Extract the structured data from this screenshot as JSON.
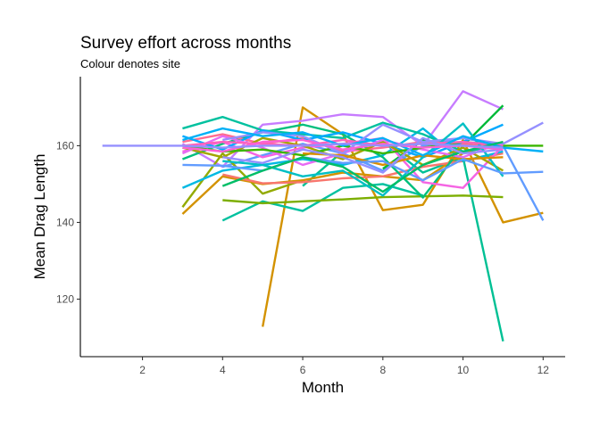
{
  "chart_data": {
    "type": "line",
    "title": "Survey effort across months",
    "subtitle": "Colour denotes site",
    "xlabel": "Month",
    "ylabel": "Mean Drag Length",
    "xlim": [
      0.45,
      12.55
    ],
    "ylim": [
      105,
      178
    ],
    "x_ticks": [
      2,
      4,
      6,
      8,
      10,
      12
    ],
    "y_ticks": [
      120,
      140,
      160
    ],
    "grid": false,
    "legend": "none",
    "series": [
      {
        "color": "#D39200",
        "x": [
          5,
          6,
          7,
          8,
          9,
          10,
          11,
          12
        ],
        "y": [
          112.8,
          170.0,
          163.0,
          143.2,
          144.6,
          161.5,
          140.0,
          142.5
        ]
      },
      {
        "color": "#00C094",
        "x": [
          6,
          7,
          8,
          9,
          10,
          11
        ],
        "y": [
          149.5,
          158.5,
          161.0,
          153.0,
          157.0,
          109.0
        ]
      },
      {
        "color": "#C77CFF",
        "x": [
          3,
          4,
          5,
          6,
          7,
          8,
          9,
          10,
          11
        ],
        "y": [
          160.5,
          154.5,
          165.5,
          166.5,
          168.2,
          167.5,
          160.0,
          174.2,
          169.5
        ]
      },
      {
        "color": "#619CFF",
        "x": [
          4,
          5,
          6,
          7,
          8,
          9,
          10,
          11,
          12
        ],
        "y": [
          154.5,
          157.5,
          160.5,
          158.0,
          153.5,
          160.0,
          162.0,
          160.0,
          140.5
        ]
      },
      {
        "color": "#00BA38",
        "x": [
          8,
          9,
          10,
          11
        ],
        "y": [
          154.0,
          161.5,
          160.0,
          170.5
        ]
      },
      {
        "color": "#93AA00",
        "x": [
          3,
          4,
          5,
          6
        ],
        "y": [
          144.0,
          158.0,
          147.5,
          151.0
        ]
      },
      {
        "color": "#D39200",
        "x": [
          3,
          4,
          5,
          6,
          7,
          8,
          9,
          10,
          11
        ],
        "y": [
          142.2,
          152.0,
          150.0,
          151.0,
          153.0,
          152.0,
          151.0,
          158.0,
          161.0
        ]
      },
      {
        "color": "#00C19F",
        "x": [
          4,
          5,
          6,
          7,
          8,
          9
        ],
        "y": [
          140.5,
          145.5,
          143.0,
          149.0,
          150.0,
          147.0
        ]
      },
      {
        "color": "#7CAE00",
        "x": [
          4,
          5,
          6,
          7,
          8,
          9,
          10,
          11
        ],
        "y": [
          145.8,
          145.0,
          145.5,
          146.0,
          146.6,
          146.8,
          147.0,
          146.6
        ]
      },
      {
        "color": "#F8766D",
        "x": [
          4,
          5,
          6,
          7,
          8,
          9,
          10,
          11
        ],
        "y": [
          152.5,
          150.2,
          150.5,
          151.5,
          152.0,
          154.5,
          156.0,
          158.0
        ]
      },
      {
        "color": "#00B9E3",
        "x": [
          3,
          4,
          5,
          6,
          7,
          8,
          9,
          10,
          11
        ],
        "y": [
          149.0,
          153.5,
          155.0,
          156.5,
          155.0,
          157.5,
          164.5,
          156.0,
          158.5
        ]
      },
      {
        "color": "#00BF7D",
        "x": [
          3,
          4,
          5,
          6,
          7,
          8,
          9,
          10,
          11
        ],
        "y": [
          156.5,
          160.5,
          163.5,
          165.5,
          163.0,
          157.0,
          146.5,
          160.0,
          160.5
        ]
      },
      {
        "color": "#F564E3",
        "x": [
          3,
          4,
          5,
          6,
          7,
          8,
          9,
          10,
          11
        ],
        "y": [
          158.5,
          161.0,
          157.0,
          159.5,
          160.5,
          162.0,
          150.5,
          149.0,
          160.0
        ]
      },
      {
        "color": "#00C19F",
        "x": [
          3,
          4,
          5,
          6,
          7,
          8,
          9,
          10,
          11
        ],
        "y": [
          164.5,
          167.5,
          164.0,
          163.0,
          162.0,
          166.0,
          163.0,
          158.5,
          160.0
        ]
      },
      {
        "color": "#FF6C91",
        "x": [
          3,
          4,
          5,
          6,
          7,
          8,
          9,
          10,
          11
        ],
        "y": [
          161.0,
          163.0,
          160.5,
          162.0,
          158.5,
          159.5,
          161.0,
          160.5,
          160.0
        ]
      },
      {
        "color": "#00A9FF",
        "x": [
          3,
          4,
          5,
          6,
          7,
          8,
          9,
          10,
          11
        ],
        "y": [
          162.5,
          159.0,
          164.0,
          161.5,
          163.5,
          160.5,
          157.0,
          161.0,
          165.5
        ]
      },
      {
        "color": "#A3A500",
        "x": [
          3,
          4,
          5,
          6,
          7,
          8,
          9,
          10,
          11
        ],
        "y": [
          159.5,
          157.0,
          162.0,
          160.0,
          156.5,
          161.0,
          155.0,
          159.5,
          153.5
        ]
      },
      {
        "color": "#E76BF3",
        "x": [
          3,
          4,
          5,
          6,
          7,
          8,
          9,
          10,
          11
        ],
        "y": [
          158.0,
          162.5,
          159.5,
          155.0,
          158.0,
          161.5,
          159.0,
          157.0,
          161.0
        ]
      },
      {
        "color": "#39B600",
        "x": [
          3,
          4,
          5,
          6,
          7,
          8,
          9,
          10,
          11,
          12
        ],
        "y": [
          160.0,
          158.5,
          159.0,
          157.5,
          160.0,
          158.0,
          159.5,
          161.0,
          160.0,
          160.0
        ]
      },
      {
        "color": "#9590FF",
        "x": [
          4,
          5,
          6,
          7,
          8,
          9,
          10,
          11,
          12
        ],
        "y": [
          161.5,
          163.5,
          162.5,
          158.0,
          165.5,
          161.0,
          162.0,
          160.5,
          166.0
        ]
      },
      {
        "color": "#00BFC4",
        "x": [
          4,
          5,
          6,
          7,
          8,
          9,
          10,
          11
        ],
        "y": [
          156.0,
          155.0,
          152.0,
          153.5,
          147.0,
          157.0,
          165.8,
          152.0
        ]
      },
      {
        "color": "#FF62BC",
        "x": [
          3,
          4,
          5,
          6,
          7,
          8,
          9,
          10,
          11
        ],
        "y": [
          160.0,
          161.0,
          160.5,
          160.0,
          161.5,
          160.0,
          160.5,
          161.0,
          160.0
        ]
      },
      {
        "color": "#DB8E00",
        "x": [
          6,
          7,
          8,
          9,
          10,
          11
        ],
        "y": [
          158.0,
          157.5,
          155.0,
          157.5,
          156.5,
          157.0
        ]
      },
      {
        "color": "#619CFF",
        "x": [
          3,
          4,
          5,
          6,
          7,
          8,
          9,
          10,
          11,
          12
        ],
        "y": [
          155.0,
          154.8,
          153.5,
          157.0,
          155.5,
          156.0,
          151.0,
          156.5,
          152.8,
          153.2
        ]
      },
      {
        "color": "#00B0F6",
        "x": [
          3,
          4,
          5,
          6,
          7,
          8,
          9,
          10,
          11,
          12
        ],
        "y": [
          161.5,
          164.5,
          162.5,
          163.5,
          160.0,
          162.0,
          157.5,
          162.5,
          159.5,
          158.5
        ]
      },
      {
        "color": "#00BE67",
        "x": [
          4,
          5,
          6,
          7,
          8,
          9,
          10,
          11
        ],
        "y": [
          149.5,
          153.5,
          157.0,
          154.5,
          148.0,
          155.0,
          158.5,
          161.0
        ]
      },
      {
        "color": "#9590FF",
        "x": [
          4,
          5,
          6,
          7,
          8,
          9,
          10,
          11
        ],
        "y": [
          157.0,
          155.5,
          159.0,
          157.0,
          153.0,
          162.0,
          158.0,
          159.0
        ]
      },
      {
        "color": "#FC61D5",
        "x": [
          3,
          4,
          5,
          6,
          7,
          8,
          9,
          10,
          11
        ],
        "y": [
          159.5,
          158.5,
          161.0,
          161.5,
          159.0,
          160.5,
          159.5,
          160.0,
          159.0
        ]
      },
      {
        "color": "#9590FF",
        "x": [
          1,
          2,
          3,
          4,
          5,
          6,
          7,
          8,
          9,
          10,
          11
        ],
        "y": [
          160.0,
          160.0,
          160.0,
          159.5,
          160.0,
          160.0,
          160.5,
          160.0,
          160.5,
          160.0,
          159.5
        ]
      }
    ]
  }
}
